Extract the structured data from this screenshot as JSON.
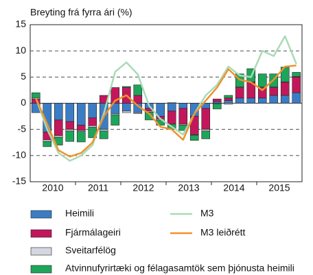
{
  "chart_data": {
    "type": "stacked-bar-line",
    "title": "Breyting frá fyrra ári (%)",
    "categories": [
      null,
      null,
      null,
      null,
      null,
      null,
      null,
      null,
      null,
      null,
      null,
      null,
      null,
      null,
      null,
      null,
      null,
      null,
      null,
      null,
      null,
      null,
      null,
      null
    ],
    "category_groups": [
      "2010",
      "2011",
      "2012",
      "2013",
      "2014",
      "2015"
    ],
    "series": [
      {
        "name": "Heimili",
        "color": "#3b7dc4",
        "values": [
          -1.8,
          -5.5,
          -3.2,
          -3.5,
          -4.2,
          -2.8,
          -5.0,
          -2.0,
          -1.5,
          -1.8,
          -1.0,
          -2.5,
          -1.5,
          -1.0,
          -2.5,
          -1.0,
          0.3,
          0.5,
          1.0,
          1.0,
          1.0,
          1.5,
          1.5,
          2.0
        ]
      },
      {
        "name": "Fjármálageiri",
        "color": "#c2185b",
        "values": [
          0.8,
          -1.5,
          -3.0,
          -1.5,
          -1.0,
          -1.5,
          1.5,
          3.0,
          3.0,
          1.5,
          -0.5,
          -0.5,
          -2.5,
          -3.0,
          -3.5,
          -4.0,
          0.5,
          0.5,
          2.0,
          3.0,
          2.0,
          1.5,
          2.5,
          3.0
        ]
      },
      {
        "name": "Sveitarfélög",
        "color": "#d4d7df",
        "values": [
          0.2,
          -0.3,
          -0.3,
          -0.3,
          -0.2,
          -0.3,
          -0.3,
          -0.2,
          -0.3,
          -0.2,
          -0.2,
          -0.2,
          0.1,
          -0.2,
          -0.1,
          -0.3,
          -0.1,
          -0.2,
          0.1,
          0.1,
          0.1,
          0.1,
          0.1,
          0.1
        ]
      },
      {
        "name": "Atvinnufyrirtæki og félagasamtök sem þjónusta heimili",
        "color": "#1ea55a",
        "values": [
          1.0,
          -1.0,
          -1.5,
          -2.0,
          -2.0,
          -2.0,
          -1.5,
          -2.0,
          0.2,
          2.0,
          -1.5,
          -1.0,
          -1.0,
          -1.0,
          -1.0,
          -1.5,
          -1.0,
          0.5,
          2.5,
          2.5,
          2.5,
          2.5,
          2.8,
          0.8
        ]
      },
      {
        "name": "M3",
        "kind": "line",
        "color": "#a9dbb6",
        "values": [
          1.0,
          -5.0,
          -9.5,
          -11.0,
          -10.0,
          -8.0,
          -2.0,
          6.0,
          7.8,
          5.5,
          -0.5,
          -3.0,
          -4.5,
          -6.0,
          -2.0,
          1.5,
          3.5,
          7.0,
          5.3,
          5.0,
          10.0,
          9.0,
          12.8,
          7.5
        ]
      },
      {
        "name": "M3 leiðrétt",
        "kind": "line",
        "color": "#f0922b",
        "values": [
          1.0,
          -4.0,
          -9.0,
          -10.2,
          -9.5,
          -7.5,
          -2.5,
          0.5,
          1.5,
          -0.5,
          -2.0,
          -4.5,
          -5.0,
          -7.0,
          -2.0,
          0.5,
          3.0,
          6.5,
          4.5,
          4.0,
          2.5,
          4.5,
          7.0,
          7.2
        ]
      }
    ],
    "ylim": [
      -15,
      15
    ],
    "yticks": [
      -15,
      -10,
      -5,
      0,
      5,
      10,
      15
    ],
    "grid": true,
    "legend": "bottom"
  }
}
